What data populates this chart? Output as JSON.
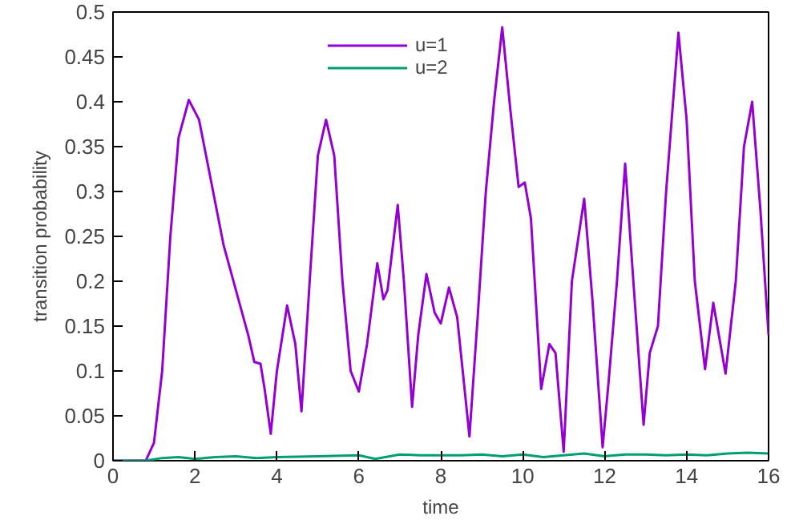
{
  "chart_data": {
    "type": "line",
    "xlabel": "time",
    "ylabel": "transition probability",
    "xlim": [
      0,
      16
    ],
    "ylim": [
      0,
      0.5
    ],
    "xticks": [
      0,
      2,
      4,
      6,
      8,
      10,
      12,
      14,
      16
    ],
    "yticks": [
      0,
      0.05,
      0.1,
      0.15,
      0.2,
      0.25,
      0.3,
      0.35,
      0.4,
      0.45,
      0.5
    ],
    "grid": false,
    "legend": "top",
    "marker": "none",
    "line_style": "solid",
    "series": [
      {
        "name": "u=1",
        "color": "#9400d3",
        "x": [
          0,
          0.8,
          1.0,
          1.2,
          1.4,
          1.6,
          1.85,
          2.1,
          2.4,
          2.7,
          3.0,
          3.3,
          3.45,
          3.6,
          3.7,
          3.85,
          4.0,
          4.25,
          4.45,
          4.6,
          4.8,
          5.0,
          5.2,
          5.4,
          5.6,
          5.8,
          6.0,
          6.2,
          6.45,
          6.6,
          6.7,
          6.95,
          7.1,
          7.3,
          7.45,
          7.65,
          7.85,
          8.0,
          8.2,
          8.4,
          8.7,
          8.9,
          9.1,
          9.3,
          9.5,
          9.7,
          9.9,
          10.05,
          10.2,
          10.45,
          10.65,
          10.8,
          11.0,
          11.2,
          11.5,
          11.7,
          11.95,
          12.1,
          12.3,
          12.5,
          12.7,
          12.95,
          13.1,
          13.3,
          13.5,
          13.8,
          14.0,
          14.2,
          14.45,
          14.65,
          14.95,
          15.2,
          15.4,
          15.6,
          15.8,
          16.0
        ],
        "values": [
          0,
          0,
          0.02,
          0.1,
          0.25,
          0.36,
          0.402,
          0.38,
          0.31,
          0.24,
          0.19,
          0.14,
          0.11,
          0.108,
          0.08,
          0.03,
          0.1,
          0.173,
          0.13,
          0.055,
          0.2,
          0.34,
          0.38,
          0.34,
          0.2,
          0.1,
          0.077,
          0.13,
          0.22,
          0.18,
          0.19,
          0.285,
          0.2,
          0.06,
          0.14,
          0.208,
          0.165,
          0.153,
          0.193,
          0.16,
          0.027,
          0.16,
          0.3,
          0.4,
          0.483,
          0.39,
          0.305,
          0.31,
          0.27,
          0.08,
          0.13,
          0.12,
          0.01,
          0.2,
          0.292,
          0.18,
          0.015,
          0.09,
          0.2,
          0.331,
          0.2,
          0.04,
          0.12,
          0.15,
          0.3,
          0.477,
          0.38,
          0.2,
          0.102,
          0.176,
          0.097,
          0.2,
          0.35,
          0.4,
          0.28,
          0.14
        ]
      },
      {
        "name": "u=2",
        "color": "#009e73",
        "x": [
          0,
          0.8,
          1.2,
          1.6,
          2.0,
          2.5,
          3.0,
          3.5,
          4,
          5,
          6,
          6.4,
          7,
          7.5,
          8,
          8.5,
          9,
          9.5,
          10,
          10.5,
          11,
          11.5,
          12,
          12.5,
          13,
          13.5,
          14,
          14.5,
          15,
          15.5,
          16
        ],
        "values": [
          0,
          0,
          0.003,
          0.004,
          0.002,
          0.004,
          0.005,
          0.003,
          0.004,
          0.005,
          0.006,
          0.002,
          0.007,
          0.006,
          0.006,
          0.006,
          0.007,
          0.005,
          0.007,
          0.004,
          0.006,
          0.008,
          0.005,
          0.007,
          0.007,
          0.006,
          0.007,
          0.006,
          0.008,
          0.009,
          0.008
        ]
      }
    ]
  }
}
